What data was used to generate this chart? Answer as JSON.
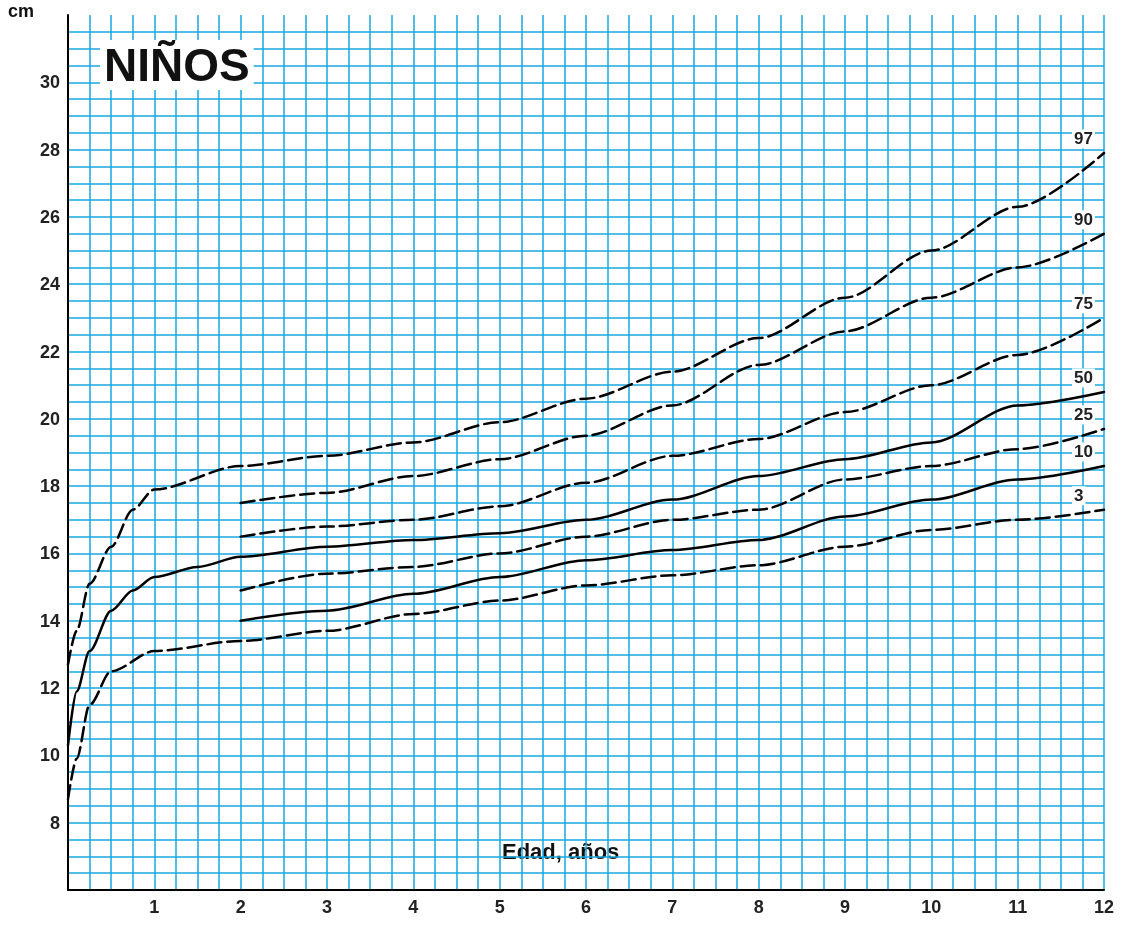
{
  "chart_data": {
    "type": "line",
    "title": "NIÑOS",
    "xlabel": "Edad, años",
    "ylabel": "cm",
    "xlim": [
      0,
      12
    ],
    "xticks": [
      {
        "value": 0,
        "label": null
      },
      {
        "value": 0.25,
        "label": null
      },
      {
        "value": 0.5,
        "label": null
      },
      {
        "value": 0.75,
        "label": null
      },
      1,
      {
        "value": 1.25,
        "label": null
      },
      {
        "value": 1.5,
        "label": null
      },
      {
        "value": 1.75,
        "label": null
      },
      2,
      {
        "value": 2.25,
        "label": null
      },
      {
        "value": 2.5,
        "label": null
      },
      {
        "value": 2.75,
        "label": null
      },
      3,
      {
        "value": 3.25,
        "label": null
      },
      {
        "value": 3.5,
        "label": null
      },
      {
        "value": 3.75,
        "label": null
      },
      4,
      {
        "value": 4.25,
        "label": null
      },
      {
        "value": 4.5,
        "label": null
      },
      {
        "value": 4.75,
        "label": null
      },
      5,
      {
        "value": 5.25,
        "label": null
      },
      {
        "value": 5.5,
        "label": null
      },
      {
        "value": 5.75,
        "label": null
      },
      6,
      {
        "value": 6.25,
        "label": null
      },
      {
        "value": 6.5,
        "label": null
      },
      {
        "value": 6.75,
        "label": null
      },
      7,
      {
        "value": 7.25,
        "label": null
      },
      {
        "value": 7.5,
        "label": null
      },
      {
        "value": 7.75,
        "label": null
      },
      8,
      {
        "value": 8.25,
        "label": null
      },
      {
        "value": 8.5,
        "label": null
      },
      {
        "value": 8.75,
        "label": null
      },
      9,
      {
        "value": 9.25,
        "label": null
      },
      {
        "value": 9.5,
        "label": null
      },
      {
        "value": 9.75,
        "label": null
      },
      10,
      {
        "value": 10.25,
        "label": null
      },
      {
        "value": 10.5,
        "label": null
      },
      {
        "value": 10.75,
        "label": null
      },
      11,
      {
        "value": 11.25,
        "label": null
      },
      {
        "value": 11.5,
        "label": null
      },
      {
        "value": 11.75,
        "label": null
      },
      12
    ],
    "ylim": [
      6,
      32
    ],
    "yticks": [
      {
        "value": 6.5,
        "label": null
      },
      {
        "value": 7,
        "label": null
      },
      {
        "value": 7.5,
        "label": null
      },
      8,
      {
        "value": 8.5,
        "label": null
      },
      {
        "value": 9,
        "label": null
      },
      {
        "value": 9.5,
        "label": null
      },
      10,
      {
        "value": 10.5,
        "label": null
      },
      {
        "value": 11,
        "label": null
      },
      {
        "value": 11.5,
        "label": null
      },
      12,
      {
        "value": 12.5,
        "label": null
      },
      {
        "value": 13,
        "label": null
      },
      {
        "value": 13.5,
        "label": null
      },
      14,
      {
        "value": 14.5,
        "label": null
      },
      {
        "value": 15,
        "label": null
      },
      {
        "value": 15.5,
        "label": null
      },
      16,
      {
        "value": 16.5,
        "label": null
      },
      {
        "value": 17,
        "label": null
      },
      {
        "value": 17.5,
        "label": null
      },
      18,
      {
        "value": 18.5,
        "label": null
      },
      {
        "value": 19,
        "label": null
      },
      {
        "value": 19.5,
        "label": null
      },
      20,
      {
        "value": 20.5,
        "label": null
      },
      {
        "value": 21,
        "label": null
      },
      {
        "value": 21.5,
        "label": null
      },
      22,
      {
        "value": 22.5,
        "label": null
      },
      {
        "value": 23,
        "label": null
      },
      {
        "value": 23.5,
        "label": null
      },
      24,
      {
        "value": 24.5,
        "label": null
      },
      {
        "value": 25,
        "label": null
      },
      {
        "value": 25.5,
        "label": null
      },
      26,
      {
        "value": 26.5,
        "label": null
      },
      {
        "value": 27,
        "label": null
      },
      {
        "value": 27.5,
        "label": null
      },
      28,
      {
        "value": 28.5,
        "label": null
      },
      {
        "value": 29,
        "label": null
      },
      {
        "value": 29.5,
        "label": null
      },
      30,
      {
        "value": 30.5,
        "label": null
      },
      {
        "value": 31,
        "label": null
      },
      {
        "value": 31.5,
        "label": null
      }
    ],
    "grid": true,
    "legend": false,
    "marker": "none",
    "series": [
      {
        "name": "97",
        "color": "#000000",
        "line_style": "dashed",
        "x": [
          0,
          0.1,
          0.25,
          0.5,
          0.75,
          1,
          2,
          3,
          4,
          5,
          6,
          7,
          8,
          9,
          10,
          11,
          12
        ],
        "values": [
          12.7,
          13.7,
          15.1,
          16.2,
          17.3,
          17.9,
          18.6,
          18.9,
          19.3,
          19.9,
          20.6,
          21.4,
          22.4,
          23.6,
          25.0,
          26.3,
          27.9
        ]
      },
      {
        "name": "90",
        "color": "#000000",
        "line_style": "dashed",
        "x": [
          2,
          3,
          4,
          5,
          6,
          7,
          8,
          9,
          10,
          11,
          12
        ],
        "values": [
          17.5,
          17.8,
          18.3,
          18.8,
          19.5,
          20.4,
          21.6,
          22.6,
          23.6,
          24.5,
          25.5
        ]
      },
      {
        "name": "75",
        "color": "#000000",
        "line_style": "dashed",
        "x": [
          2,
          3,
          4,
          5,
          6,
          7,
          8,
          9,
          10,
          11,
          12
        ],
        "values": [
          16.5,
          16.8,
          17.0,
          17.4,
          18.1,
          18.9,
          19.4,
          20.2,
          21.0,
          21.9,
          23.0
        ]
      },
      {
        "name": "50",
        "color": "#000000",
        "line_style": "solid",
        "x": [
          0,
          0.1,
          0.25,
          0.5,
          0.75,
          1,
          1.5,
          2,
          3,
          4,
          5,
          6,
          7,
          8,
          9,
          10,
          11,
          12
        ],
        "values": [
          10.3,
          11.9,
          13.1,
          14.3,
          14.9,
          15.3,
          15.6,
          15.9,
          16.2,
          16.4,
          16.6,
          17.0,
          17.6,
          18.3,
          18.8,
          19.3,
          20.4,
          20.8
        ]
      },
      {
        "name": "25",
        "color": "#000000",
        "line_style": "dashed",
        "x": [
          2,
          3,
          4,
          5,
          6,
          7,
          8,
          9,
          10,
          11,
          12
        ],
        "values": [
          14.9,
          15.4,
          15.6,
          16.0,
          16.5,
          17.0,
          17.3,
          18.2,
          18.6,
          19.1,
          19.7
        ]
      },
      {
        "name": "10",
        "color": "#000000",
        "line_style": "solid",
        "x": [
          2,
          3,
          4,
          5,
          6,
          7,
          8,
          9,
          10,
          11,
          12
        ],
        "values": [
          14.0,
          14.3,
          14.8,
          15.3,
          15.8,
          16.1,
          16.4,
          17.1,
          17.6,
          18.2,
          18.6
        ]
      },
      {
        "name": "3",
        "color": "#000000",
        "line_style": "dashed",
        "x": [
          0,
          0.1,
          0.25,
          0.5,
          1,
          2,
          3,
          4,
          5,
          6,
          7,
          8,
          9,
          10,
          11,
          12
        ],
        "values": [
          8.7,
          9.9,
          11.5,
          12.5,
          13.1,
          13.4,
          13.7,
          14.2,
          14.6,
          15.05,
          15.35,
          15.65,
          16.2,
          16.7,
          17.0,
          17.3
        ]
      }
    ]
  }
}
